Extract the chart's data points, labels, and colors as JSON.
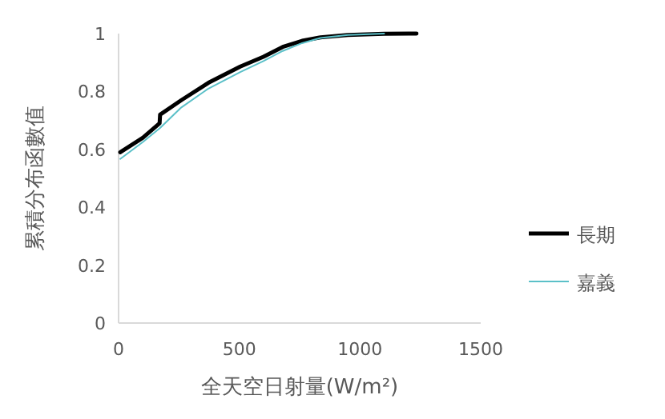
{
  "chart_data": {
    "type": "line",
    "xlabel": "全天空日射量(W/m²)",
    "ylabel": "累積分布函數值",
    "xlim": [
      0,
      1500
    ],
    "xticks": [
      0,
      500,
      1000,
      1500
    ],
    "ylim": [
      0,
      1
    ],
    "yticks": [
      0,
      0.2,
      0.4,
      0.6,
      0.8,
      1
    ],
    "grid": false,
    "legend": "right",
    "marker": "none",
    "series": [
      {
        "name": "長期",
        "color": "#000000",
        "x": [
          7,
          100,
          170,
          172,
          260,
          372,
          504,
          600,
          680,
          760,
          836,
          950,
          1100,
          1234
        ],
        "values": [
          0.59,
          0.64,
          0.69,
          0.72,
          0.77,
          0.83,
          0.886,
          0.92,
          0.954,
          0.975,
          0.987,
          0.995,
          0.999,
          1
        ]
      },
      {
        "name": "嘉義",
        "color": "#5bc0c8",
        "x": [
          7,
          100,
          172,
          260,
          372,
          504,
          600,
          680,
          760,
          836,
          950,
          1100
        ],
        "values": [
          0.567,
          0.625,
          0.674,
          0.745,
          0.81,
          0.867,
          0.905,
          0.94,
          0.967,
          0.985,
          0.995,
          1
        ]
      }
    ]
  }
}
